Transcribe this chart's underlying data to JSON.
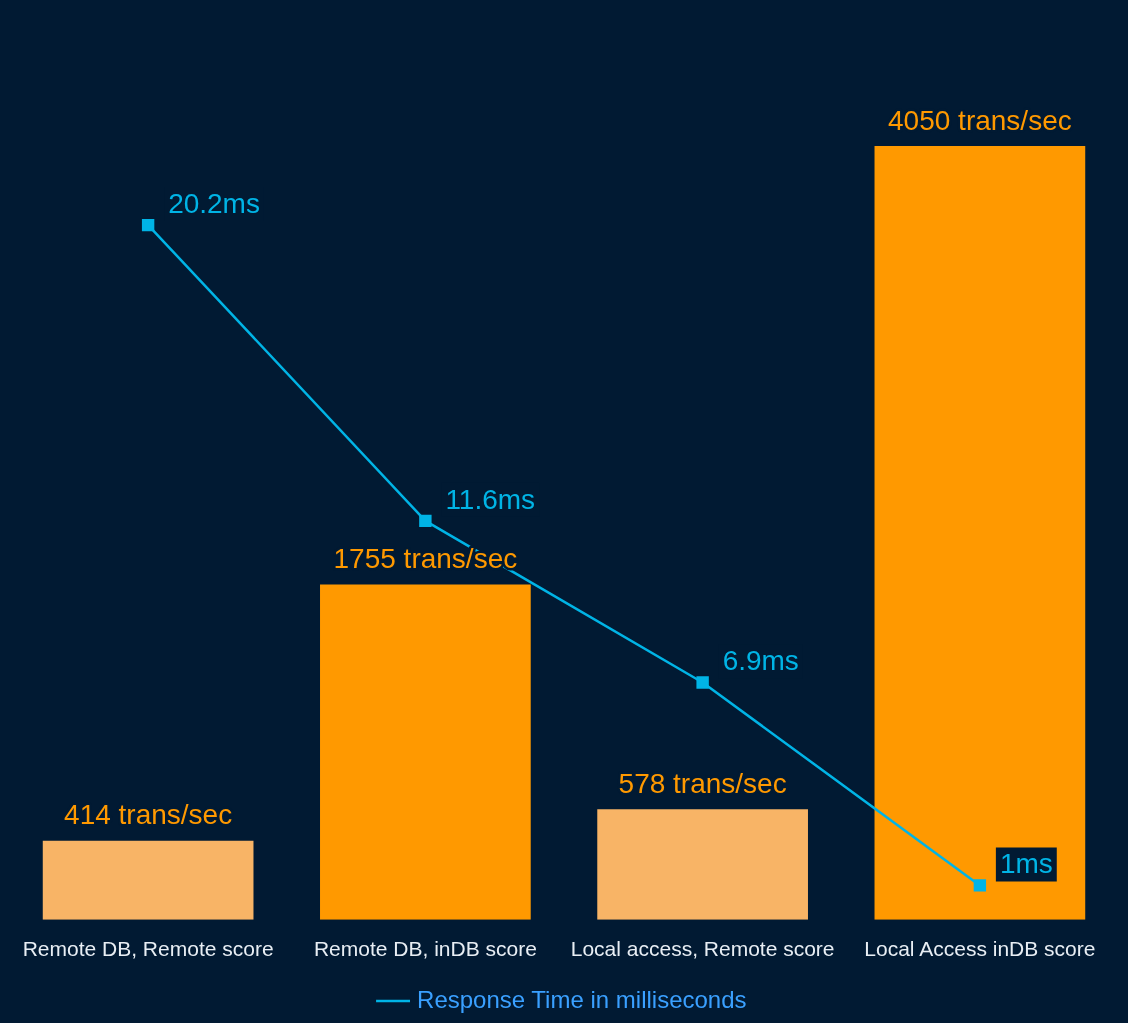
{
  "chart_data": {
    "type": "bar",
    "categories": [
      "Remote DB, Remote score",
      "Remote DB, inDB score",
      "Local access, Remote score",
      "Local Access inDB score"
    ],
    "series": [
      {
        "color": "#ff9900",
        "colors": [
          "#f8b466",
          "#ff9900",
          "#f8b466",
          "#ff9900"
        ],
        "values": [
          414,
          1755,
          578,
          4050
        ],
        "value_labels": [
          "414 trans/sec",
          "1755 trans/sec",
          "578 trans/sec",
          "4050 trans/sec"
        ]
      },
      {
        "type": "line",
        "axis": "y2",
        "name": "Response Time in milliseconds",
        "color": "#00b4e6",
        "values": [
          20.2,
          11.6,
          6.9,
          1
        ],
        "value_labels": [
          "20.2ms",
          "11.6ms",
          "6.9ms",
          "1ms"
        ]
      }
    ],
    "marker": "square",
    "legend": "bottom",
    "tick_labels": "x",
    "grid": false
  }
}
